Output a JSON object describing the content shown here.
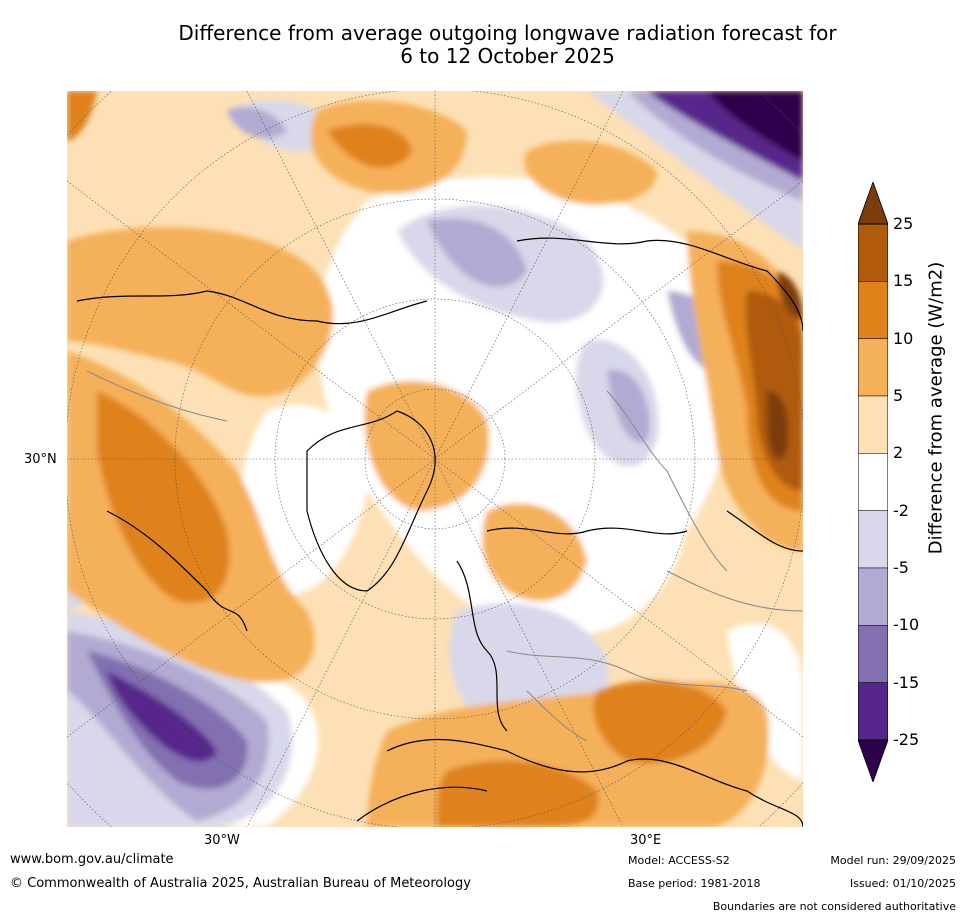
{
  "title": {
    "line1": "Difference from average outgoing longwave radiation forecast for",
    "line2": "6 to 12 October 2025"
  },
  "axis_labels": {
    "lat_30n": "30°N",
    "lon_30w": "30°W",
    "lon_30e": "30°E"
  },
  "colorbar": {
    "title": "Difference from average (W/m2)",
    "levels": [
      "25",
      "15",
      "10",
      "5",
      "2",
      "-2",
      "-5",
      "-10",
      "-15",
      "-25"
    ],
    "colors": [
      "#7b3d0c",
      "#b05a0c",
      "#df821a",
      "#f5b05a",
      "#fde0b5",
      "#ffffff",
      "#d8d8ea",
      "#b2aad2",
      "#8270b0",
      "#56258b",
      "#2d004b"
    ]
  },
  "footer": {
    "url": "www.bom.gov.au/climate",
    "copyright": "© Commonwealth of Australia 2025, Australian Bureau of Meteorology",
    "model": "Model: ACCESS-S2",
    "base_period": "Base period: 1981-2018",
    "model_run": "Model run: 29/09/2025",
    "issued": "Issued: 01/10/2025",
    "disclaimer": "Boundaries are not considered authoritative"
  }
}
